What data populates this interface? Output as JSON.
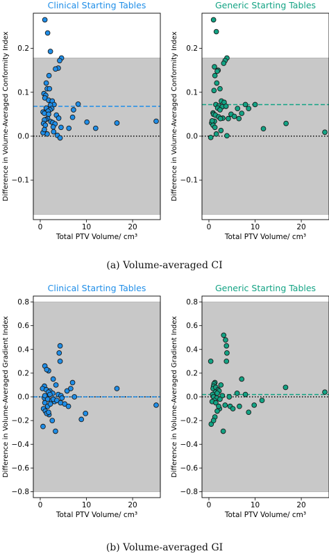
{
  "captions": {
    "a": "(a) Volume-averaged CI",
    "b": "(b) Volume-averaged GI"
  },
  "colors": {
    "clinical": "#1f8ee8",
    "generic": "#13a384",
    "band": "#c8c8c8"
  },
  "chart_data": [
    {
      "type": "scatter",
      "title": "Clinical Starting Tables",
      "xlabel": "Total PTV Volume/ cm³",
      "ylabel": "Difference in Volume-Averaged Conformity Index",
      "xlim": [
        -1.5,
        26
      ],
      "ylim": [
        -0.19,
        0.28
      ],
      "xticks": [
        0,
        10,
        20
      ],
      "yticks": [
        -0.1,
        0.0,
        0.1,
        0.2
      ],
      "ytick_labels": [
        "−0.1",
        "0.0",
        "0.1",
        "0.2"
      ],
      "band": [
        -0.178,
        0.178
      ],
      "mean": 0.068,
      "zero_line": 0.0,
      "color": "#1f8ee8",
      "x": [
        1.0,
        1.6,
        2.2,
        4.6,
        4.2,
        3.9,
        3.3,
        1.9,
        1.3,
        1.5,
        2.0,
        0.8,
        1.2,
        1.0,
        1.8,
        2.6,
        3.0,
        2.2,
        2.5,
        1.3,
        2.1,
        1.7,
        0.6,
        0.9,
        1.8,
        3.5,
        4.0,
        1.6,
        1.2,
        0.9,
        2.3,
        2.7,
        3.2,
        0.7,
        1.1,
        2.8,
        4.5,
        6.2,
        7.2,
        8.2,
        7.0,
        10.1,
        12.0,
        16.6,
        25.1,
        3.7,
        2.9,
        1.5,
        4.3,
        0.6,
        0.9
      ],
      "y": [
        0.265,
        0.235,
        0.193,
        0.178,
        0.172,
        0.155,
        0.153,
        0.138,
        0.121,
        0.108,
        0.108,
        0.097,
        0.093,
        0.087,
        0.082,
        0.08,
        0.072,
        0.071,
        0.063,
        0.064,
        0.06,
        0.057,
        0.055,
        0.052,
        0.05,
        0.048,
        0.041,
        0.04,
        0.038,
        0.037,
        0.033,
        0.031,
        0.028,
        0.029,
        0.025,
        0.021,
        0.02,
        0.018,
        0.06,
        0.073,
        0.043,
        0.032,
        0.018,
        0.03,
        0.034,
        0.002,
        0.01,
        0.005,
        -0.004,
        0.008,
        0.015
      ]
    },
    {
      "type": "scatter",
      "title": "Generic Starting Tables",
      "xlabel": "Total PTV Volume/ cm³",
      "ylabel": "Difference in Volume-Averaged Conformity Index",
      "xlim": [
        -1.5,
        26
      ],
      "ylim": [
        -0.19,
        0.28
      ],
      "xticks": [
        0,
        10,
        20
      ],
      "yticks": [
        -0.1,
        0.0,
        0.1,
        0.2
      ],
      "ytick_labels": [
        "−0.1",
        "0.0",
        "0.1",
        "0.2"
      ],
      "band": [
        -0.178,
        0.178
      ],
      "mean": 0.072,
      "zero_line": 0.0,
      "color": "#13a384",
      "x": [
        1.0,
        1.6,
        3.9,
        3.5,
        3.2,
        1.2,
        2.0,
        1.8,
        1.3,
        1.7,
        2.4,
        1.1,
        2.7,
        3.3,
        1.5,
        2.2,
        2.9,
        3.7,
        1.9,
        2.4,
        0.9,
        1.0,
        1.4,
        2.1,
        3.0,
        2.5,
        1.2,
        0.6,
        0.9,
        4.2,
        4.8,
        5.5,
        6.2,
        7.1,
        7.9,
        10.0,
        6.5,
        8.6,
        11.8,
        16.7,
        25.1,
        0.4,
        1.6,
        2.6,
        3.9,
        1.3,
        0.7
      ],
      "y": [
        0.265,
        0.238,
        0.178,
        0.172,
        0.166,
        0.158,
        0.15,
        0.148,
        0.138,
        0.121,
        0.108,
        0.104,
        0.08,
        0.077,
        0.072,
        0.069,
        0.067,
        0.068,
        0.064,
        0.06,
        0.053,
        0.05,
        0.048,
        0.044,
        0.041,
        0.04,
        0.034,
        0.03,
        0.025,
        0.04,
        0.05,
        0.045,
        0.063,
        0.052,
        0.072,
        0.072,
        0.04,
        0.063,
        0.017,
        0.029,
        0.009,
        -0.003,
        0.005,
        0.013,
        0.001,
        0.02,
        0.035
      ]
    },
    {
      "type": "scatter",
      "title": "Clinical Starting Tables",
      "xlabel": "Total PTV Volume/ cm³",
      "ylabel": "Difference in Volume-Averaged Gradient Index",
      "xlim": [
        -1.5,
        26
      ],
      "ylim": [
        -0.85,
        0.85
      ],
      "xticks": [
        0,
        10,
        20
      ],
      "yticks": [
        -0.8,
        -0.6,
        -0.4,
        -0.2,
        0.0,
        0.2,
        0.4,
        0.6,
        0.8
      ],
      "ytick_labels": [
        "−0.8",
        "−0.6",
        "−0.4",
        "−0.2",
        "0.0",
        "0.2",
        "0.4",
        "0.6",
        "0.8"
      ],
      "band": [
        -0.8,
        0.8
      ],
      "mean": 0.0,
      "zero_line": 0.0,
      "color": "#1f8ee8",
      "x": [
        4.3,
        4.1,
        4.3,
        1.0,
        1.8,
        1.4,
        2.8,
        3.4,
        0.9,
        0.5,
        1.3,
        2.1,
        1.8,
        2.7,
        3.9,
        4.5,
        1.2,
        0.9,
        1.6,
        2.5,
        5.8,
        7.0,
        6.6,
        1.0,
        1.6,
        2.2,
        3.1,
        0.7,
        1.1,
        1.9,
        2.8,
        3.6,
        4.4,
        5.3,
        6.1,
        7.4,
        16.6,
        25.1,
        9.8,
        8.9,
        1.4,
        2.6,
        0.6,
        1.8,
        3.3,
        4.7,
        2.1,
        1.0
      ],
      "y": [
        0.43,
        0.37,
        0.3,
        0.26,
        0.22,
        0.23,
        0.15,
        0.1,
        0.09,
        0.07,
        0.06,
        0.05,
        0.04,
        0.03,
        0.02,
        0.01,
        0.0,
        -0.01,
        -0.02,
        -0.03,
        0.05,
        0.12,
        0.07,
        -0.05,
        -0.08,
        -0.06,
        -0.04,
        -0.1,
        -0.12,
        -0.15,
        -0.02,
        -0.03,
        -0.05,
        -0.06,
        -0.08,
        0.0,
        0.07,
        -0.07,
        -0.14,
        -0.19,
        -0.14,
        -0.2,
        -0.25,
        -0.13,
        -0.29,
        -0.01,
        0.02,
        0.01
      ]
    },
    {
      "type": "scatter",
      "title": "Generic Starting Tables",
      "xlabel": "Total PTV Volume/ cm³",
      "ylabel": "Difference in Volume-Averaged Gradient Index",
      "xlim": [
        -1.5,
        26
      ],
      "ylim": [
        -0.85,
        0.85
      ],
      "xticks": [
        0,
        10,
        20
      ],
      "yticks": [
        -0.8,
        -0.6,
        -0.4,
        -0.2,
        0.0,
        0.2,
        0.4,
        0.6,
        0.8
      ],
      "ytick_labels": [
        "−0.8",
        "−0.6",
        "−0.4",
        "−0.2",
        "0.0",
        "0.2",
        "0.4",
        "0.6",
        "0.8"
      ],
      "band": [
        -0.8,
        0.8
      ],
      "mean": 0.02,
      "zero_line": 0.0,
      "color": "#13a384",
      "x": [
        3.2,
        3.6,
        3.8,
        3.9,
        0.4,
        3.8,
        1.3,
        1.1,
        2.6,
        7.1,
        1.0,
        0.9,
        1.5,
        2.0,
        2.2,
        1.4,
        1.8,
        0.8,
        2.9,
        6.1,
        1.0,
        1.7,
        2.4,
        1.2,
        0.7,
        1.5,
        3.5,
        2.3,
        1.8,
        4.6,
        5.2,
        6.6,
        7.9,
        16.6,
        25.1,
        11.5,
        9.8,
        8.6,
        0.5,
        1.3,
        3.1,
        1.0,
        2.1,
        4.4
      ],
      "y": [
        0.52,
        0.48,
        0.43,
        0.37,
        0.3,
        0.3,
        0.12,
        0.11,
        0.1,
        0.15,
        0.09,
        0.07,
        0.08,
        0.06,
        0.05,
        0.04,
        0.03,
        0.02,
        0.01,
        0.03,
        0.0,
        -0.01,
        -0.02,
        -0.03,
        -0.04,
        -0.05,
        -0.07,
        -0.1,
        -0.12,
        -0.08,
        -0.1,
        -0.08,
        0.02,
        0.08,
        0.04,
        -0.03,
        -0.07,
        -0.13,
        -0.23,
        -0.17,
        -0.29,
        -0.2,
        -0.08,
        0.0
      ]
    }
  ]
}
